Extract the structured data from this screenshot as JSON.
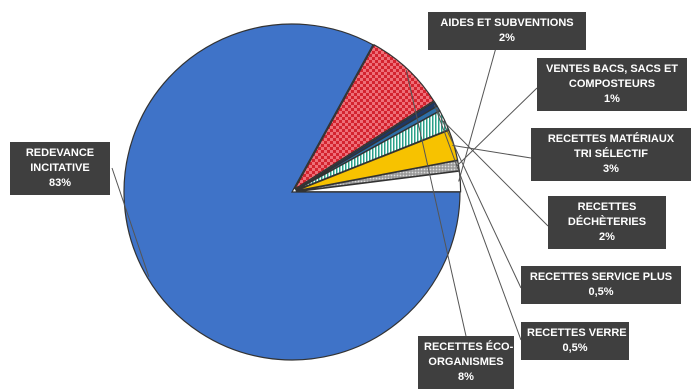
{
  "chart_data": {
    "type": "pie",
    "slices": [
      {
        "label_lines": [
          "REDEVANCE",
          "INCITATIVE"
        ],
        "pct_label": "83%",
        "value": 83,
        "color": "#3f73c8",
        "pattern": "solid",
        "slice_name": "slice-redevance-incitative",
        "label_name": "label-redevance-incitative"
      },
      {
        "label_lines": [
          "RECETTES ÉCO-",
          "ORGANISMES"
        ],
        "pct_label": "8%",
        "value": 8,
        "color": "#d4232f",
        "pattern": "checker",
        "slice_name": "slice-recettes-eco-organismes",
        "label_name": "label-recettes-eco-organismes"
      },
      {
        "label_lines": [
          "RECETTES VERRE"
        ],
        "pct_label": "0,5%",
        "value": 0.5,
        "color": "#1f3864",
        "pattern": "solid",
        "slice_name": "slice-recettes-verre",
        "label_name": "label-recettes-verre"
      },
      {
        "label_lines": [
          "RECETTES SERVICE PLUS"
        ],
        "pct_label": "0,5%",
        "value": 0.5,
        "color": "#2e6fa8",
        "pattern": "solid",
        "slice_name": "slice-recettes-service-plus",
        "label_name": "label-recettes-service-plus"
      },
      {
        "label_lines": [
          "RECETTES",
          "DÉCHÈTERIES"
        ],
        "pct_label": "2%",
        "value": 2,
        "color": "#2aa089",
        "pattern": "vstripes",
        "slice_name": "slice-recettes-decheteries",
        "label_name": "label-recettes-decheteries"
      },
      {
        "label_lines": [
          "RECETTES MATÉRIAUX",
          "TRI SÉLECTIF"
        ],
        "pct_label": "3%",
        "value": 3,
        "color": "#f7c200",
        "pattern": "solid",
        "slice_name": "slice-recettes-materiaux-tri-selectif",
        "label_name": "label-recettes-materiaux-tri-selectif"
      },
      {
        "label_lines": [
          "VENTES BACS, SACS ET",
          "COMPOSTEURS"
        ],
        "pct_label": "1%",
        "value": 1,
        "color": "#b5b5b5",
        "pattern": "dots",
        "slice_name": "slice-ventes-bacs-sacs-composteurs",
        "label_name": "label-ventes-bacs-sacs-composteurs"
      },
      {
        "label_lines": [
          "AIDES ET SUBVENTIONS"
        ],
        "pct_label": "2%",
        "value": 2,
        "color": "#ffffff",
        "pattern": "solid",
        "slice_name": "slice-aides-et-subventions",
        "label_name": "label-aides-et-subventions"
      }
    ],
    "legend": "none"
  }
}
